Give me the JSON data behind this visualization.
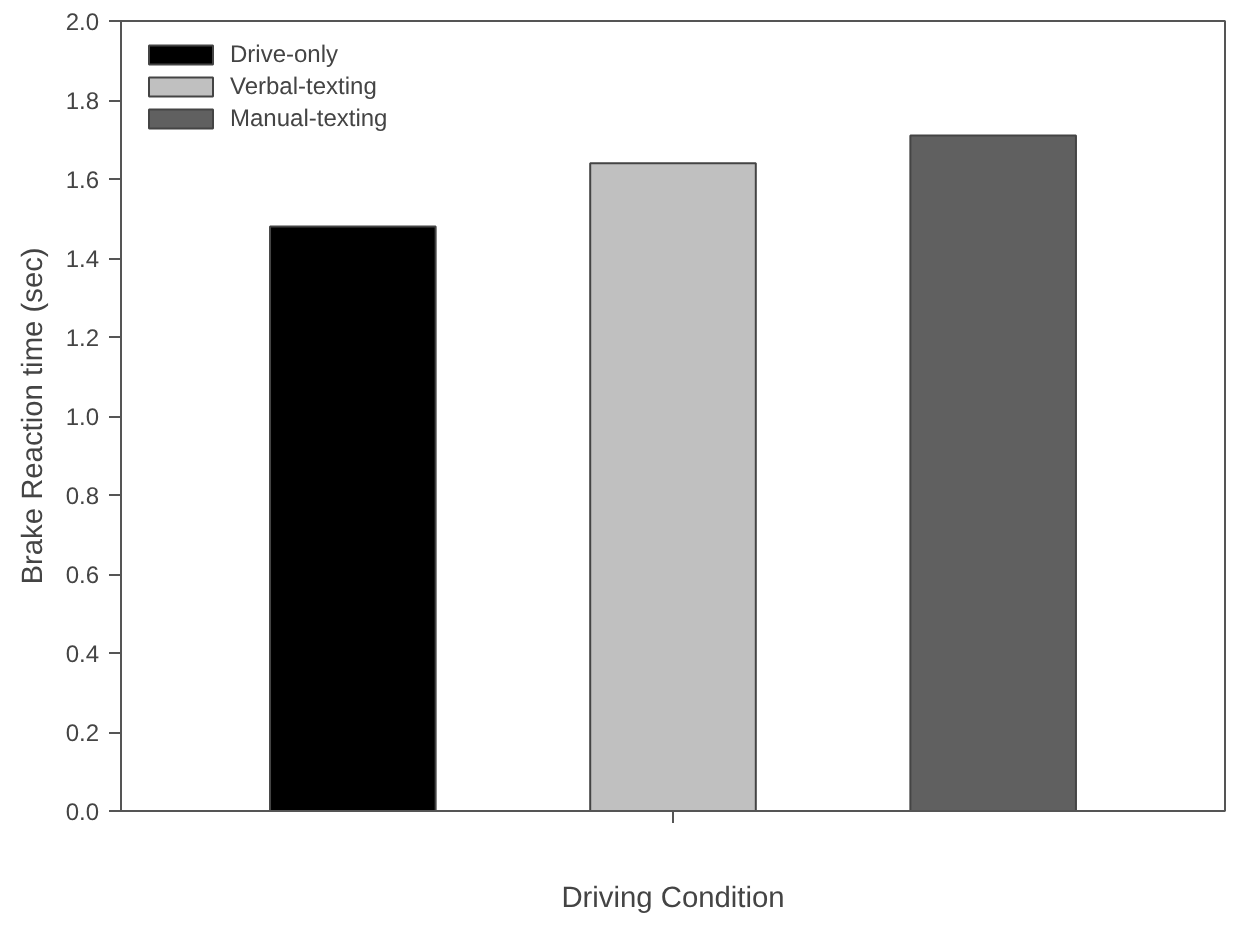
{
  "chart_data": {
    "type": "bar",
    "xlabel": "Driving Condition",
    "ylabel": "Brake Reaction time (sec)",
    "categories": [
      null
    ],
    "series": [
      {
        "name": "Drive-only",
        "color": "#000000",
        "values": [
          1.48
        ]
      },
      {
        "name": "Verbal-texting",
        "color": "#c0c0c0",
        "values": [
          1.64
        ]
      },
      {
        "name": "Manual-texting",
        "color": "#606060",
        "values": [
          1.71
        ]
      }
    ],
    "ylim": [
      0,
      2.0
    ],
    "yticks": [
      {
        "value": 0,
        "label": "0.0"
      },
      0.2,
      0.4,
      0.6,
      0.8,
      {
        "value": 1,
        "label": "1.0"
      },
      1.2,
      1.4,
      1.6,
      1.8,
      {
        "value": 2,
        "label": "2.0"
      }
    ],
    "legend": "top left",
    "grid": false
  }
}
